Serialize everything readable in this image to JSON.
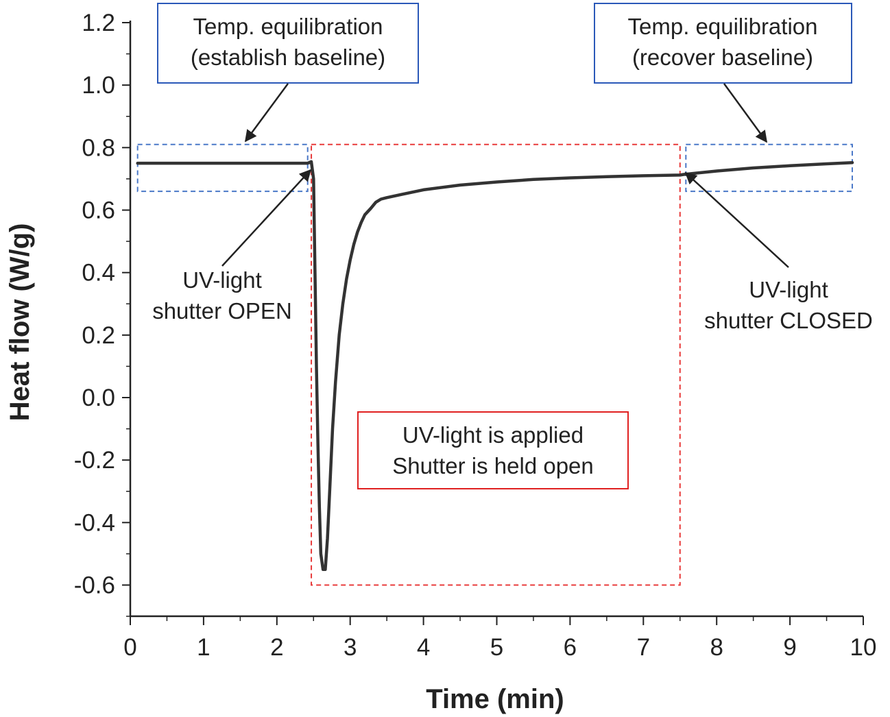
{
  "chart_data": {
    "type": "line",
    "title": "",
    "xlabel": "Time (min)",
    "ylabel": "Heat flow (W/g)",
    "xlim": [
      0,
      10
    ],
    "ylim": [
      -0.7,
      1.2
    ],
    "x_ticks": [
      "0",
      "1",
      "2",
      "3",
      "4",
      "5",
      "6",
      "7",
      "8",
      "9",
      "10"
    ],
    "y_ticks": [
      "1.2",
      "1.0",
      "0.8",
      "0.6",
      "0.4",
      "0.2",
      "0.0",
      "-0.2",
      "-0.4",
      "-0.6"
    ],
    "grid": false,
    "line_color": "#333333",
    "series": [
      {
        "x": [
          0.1,
          2.42,
          2.47,
          2.5,
          2.52,
          2.54,
          2.56,
          2.58,
          2.6,
          2.63,
          2.66,
          2.69,
          2.72,
          2.76,
          2.8,
          2.85,
          2.9,
          2.95,
          3.0,
          3.05,
          3.1,
          3.15,
          3.2,
          3.28,
          3.35,
          3.42,
          3.5,
          3.7,
          4.0,
          4.5,
          5.0,
          5.5,
          6.0,
          6.5,
          7.0,
          7.5,
          7.55,
          8.0,
          8.5,
          9.0,
          9.5,
          9.85
        ],
        "y": [
          0.75,
          0.75,
          0.755,
          0.7,
          0.4,
          0.1,
          -0.15,
          -0.35,
          -0.5,
          -0.55,
          -0.55,
          -0.45,
          -0.3,
          -0.1,
          0.05,
          0.2,
          0.3,
          0.38,
          0.44,
          0.49,
          0.53,
          0.56,
          0.585,
          0.605,
          0.625,
          0.635,
          0.64,
          0.65,
          0.665,
          0.68,
          0.69,
          0.698,
          0.703,
          0.707,
          0.71,
          0.712,
          0.714,
          0.725,
          0.735,
          0.742,
          0.748,
          0.752
        ]
      }
    ],
    "regions": [
      {
        "id": "baseline-start",
        "x": [
          0.1,
          2.42
        ],
        "y": [
          0.66,
          0.81
        ],
        "style": "dashed",
        "color": "#4a78c8"
      },
      {
        "id": "uv-applied",
        "x": [
          2.47,
          7.5
        ],
        "y": [
          -0.6,
          0.81
        ],
        "style": "dashed",
        "color": "#e83a3a"
      },
      {
        "id": "baseline-end",
        "x": [
          7.58,
          9.85
        ],
        "y": [
          0.66,
          0.81
        ],
        "style": "dashed",
        "color": "#4a78c8"
      }
    ],
    "annotations": {
      "equil_start": {
        "lines": [
          "Temp. equilibration",
          "(establish baseline)"
        ],
        "box_color": "#2a58b8"
      },
      "equil_end": {
        "lines": [
          "Temp. equilibration",
          "(recover baseline)"
        ],
        "box_color": "#2a58b8"
      },
      "uv_applied": {
        "lines": [
          "UV-light is applied",
          "Shutter is held open"
        ],
        "box_color": "#e02020"
      },
      "shutter_open": {
        "lines": [
          "UV-light",
          "shutter OPEN"
        ]
      },
      "shutter_closed": {
        "lines": [
          "UV-light",
          "shutter CLOSED"
        ]
      }
    }
  }
}
